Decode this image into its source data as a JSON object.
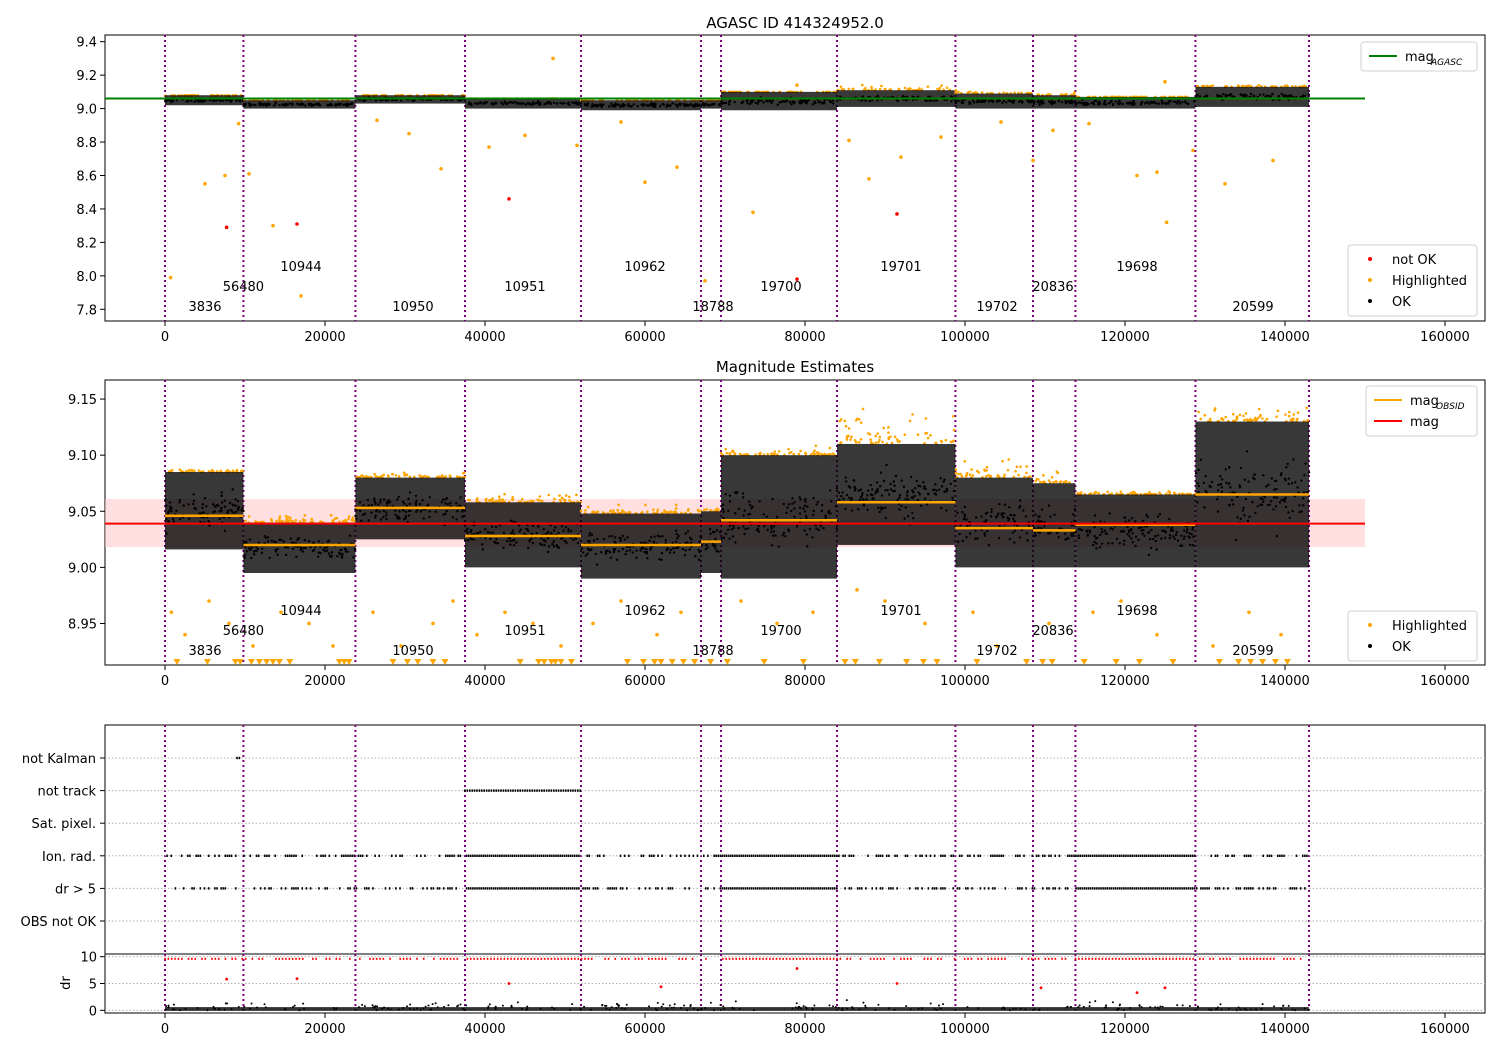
{
  "figure": {
    "title": "AGASC ID 414324952.0"
  },
  "chart_data": [
    {
      "type": "scatter",
      "title": "",
      "xlim": [
        -7500,
        165000
      ],
      "ylim": [
        7.73,
        9.44
      ],
      "xticks": [
        0,
        20000,
        40000,
        60000,
        80000,
        100000,
        120000,
        140000,
        160000
      ],
      "yticks": [
        7.8,
        8.0,
        8.2,
        8.4,
        8.6,
        8.8,
        9.0,
        9.2,
        9.4
      ],
      "ytick_labels": [
        "7.8",
        "8.0",
        "8.2",
        "8.4",
        "8.6",
        "8.8",
        "9.0",
        "9.2",
        "9.4"
      ],
      "mag_agasc": 9.06,
      "legend_top": {
        "position": "top-right",
        "entries": [
          {
            "label": "mag",
            "sub": "AGASC",
            "color": "#008000"
          }
        ]
      },
      "legend_bottom": {
        "position": "bottom-right",
        "entries": [
          {
            "label": "not OK",
            "color": "#ff0000"
          },
          {
            "label": "Highlighted",
            "color": "#ffa500"
          },
          {
            "label": "OK",
            "color": "#000000"
          }
        ]
      },
      "series": [
        {
          "label": "not OK",
          "x": [
            7700,
            16500,
            43000,
            91500,
            79000
          ],
          "y": [
            8.29,
            8.31,
            8.46,
            8.37,
            7.98
          ]
        },
        {
          "label": "Highlighted",
          "x": [
            700,
            5000,
            7500,
            9200,
            10500,
            13500,
            17000,
            26500,
            30500,
            34500,
            40500,
            45000,
            48500,
            51500,
            57000,
            60000,
            64000,
            67500,
            73500,
            79000,
            85500,
            88000,
            92000,
            97000,
            104500,
            108500,
            111000,
            115500,
            121500,
            124000,
            125000,
            125200,
            128500,
            132500,
            138500
          ],
          "y": [
            7.99,
            8.55,
            8.6,
            8.91,
            8.61,
            8.3,
            7.88,
            8.93,
            8.85,
            8.64,
            8.77,
            8.84,
            9.3,
            8.78,
            8.92,
            8.56,
            8.65,
            7.97,
            8.38,
            9.14,
            8.81,
            8.58,
            8.71,
            8.83,
            8.92,
            8.69,
            8.87,
            8.91,
            8.6,
            8.62,
            9.16,
            8.32,
            8.75,
            8.55,
            8.69
          ]
        }
      ],
      "bands": [
        {
          "x": [
            0,
            9800
          ],
          "low": 9.02,
          "high": 9.08,
          "hl": 9.07
        },
        {
          "x": [
            9800,
            23800
          ],
          "low": 9.0,
          "high": 9.05,
          "hl": 9.05
        },
        {
          "x": [
            23800,
            37500
          ],
          "low": 9.03,
          "high": 9.08,
          "hl": 9.07
        },
        {
          "x": [
            37500,
            52000
          ],
          "low": 9.0,
          "high": 9.06,
          "hl": 9.06
        },
        {
          "x": [
            52000,
            67000
          ],
          "low": 8.99,
          "high": 9.05,
          "hl": 9.05
        },
        {
          "x": [
            67000,
            69500
          ],
          "low": 9.0,
          "high": 9.05,
          "hl": 9.05
        },
        {
          "x": [
            69500,
            84000
          ],
          "low": 8.99,
          "high": 9.1,
          "hl": 9.1
        },
        {
          "x": [
            84000,
            98800
          ],
          "low": 9.01,
          "high": 9.11,
          "hl": 9.16
        },
        {
          "x": [
            98800,
            108500
          ],
          "low": 9.0,
          "high": 9.09,
          "hl": 9.12
        },
        {
          "x": [
            108500,
            113800
          ],
          "low": 9.0,
          "high": 9.08,
          "hl": 9.1
        },
        {
          "x": [
            113800,
            128800
          ],
          "low": 9.0,
          "high": 9.07,
          "hl": 9.07
        },
        {
          "x": [
            128800,
            143000
          ],
          "low": 9.01,
          "high": 9.13,
          "hl": 9.15
        }
      ]
    },
    {
      "type": "scatter",
      "title": "Magnitude Estimates",
      "xlim": [
        -7500,
        165000
      ],
      "ylim": [
        8.913,
        9.167
      ],
      "xticks": [
        0,
        20000,
        40000,
        60000,
        80000,
        100000,
        120000,
        140000,
        160000
      ],
      "yticks": [
        8.95,
        9.0,
        9.05,
        9.1,
        9.15
      ],
      "ytick_labels": [
        "8.95",
        "9.00",
        "9.05",
        "9.10",
        "9.15"
      ],
      "mag": 9.039,
      "mag_band": [
        9.018,
        9.061
      ],
      "legend_top": {
        "position": "top-right",
        "entries": [
          {
            "label": "mag",
            "sub": "OBSID",
            "color": "#ffa500"
          },
          {
            "label": "mag",
            "sub": "",
            "color": "#ff0000"
          }
        ]
      },
      "legend_bottom": {
        "position": "bottom-right",
        "entries": [
          {
            "label": "Highlighted",
            "color": "#ffa500"
          },
          {
            "label": "OK",
            "color": "#000000"
          }
        ]
      },
      "obsid_mean": [
        {
          "x": [
            0,
            9800
          ],
          "y": 9.046
        },
        {
          "x": [
            9800,
            23800
          ],
          "y": 9.02
        },
        {
          "x": [
            23800,
            37500
          ],
          "y": 9.053
        },
        {
          "x": [
            37500,
            52000
          ],
          "y": 9.028
        },
        {
          "x": [
            52000,
            67000
          ],
          "y": 9.02
        },
        {
          "x": [
            67000,
            69500
          ],
          "y": 9.023
        },
        {
          "x": [
            69500,
            84000
          ],
          "y": 9.042
        },
        {
          "x": [
            84000,
            98800
          ],
          "y": 9.058
        },
        {
          "x": [
            98800,
            108500
          ],
          "y": 9.035
        },
        {
          "x": [
            108500,
            113800
          ],
          "y": 9.033
        },
        {
          "x": [
            113800,
            128800
          ],
          "y": 9.038
        },
        {
          "x": [
            128800,
            143000
          ],
          "y": 9.065
        }
      ],
      "bands": [
        {
          "x": [
            0,
            9800
          ],
          "low": 9.016,
          "high": 9.085,
          "hl": 9.09
        },
        {
          "x": [
            9800,
            23800
          ],
          "low": 8.995,
          "high": 9.04,
          "hl": 9.05
        },
        {
          "x": [
            23800,
            37500
          ],
          "low": 9.025,
          "high": 9.08,
          "hl": 9.088
        },
        {
          "x": [
            37500,
            52000
          ],
          "low": 9.0,
          "high": 9.058,
          "hl": 9.07
        },
        {
          "x": [
            52000,
            67000
          ],
          "low": 8.99,
          "high": 9.048,
          "hl": 9.06
        },
        {
          "x": [
            67000,
            69500
          ],
          "low": 8.995,
          "high": 9.05,
          "hl": 9.06
        },
        {
          "x": [
            69500,
            84000
          ],
          "low": 8.99,
          "high": 9.1,
          "hl": 9.11
        },
        {
          "x": [
            84000,
            98800
          ],
          "low": 9.02,
          "high": 9.11,
          "hl": 9.16
        },
        {
          "x": [
            98800,
            108500
          ],
          "low": 9.0,
          "high": 9.08,
          "hl": 9.11
        },
        {
          "x": [
            108500,
            113800
          ],
          "low": 9.0,
          "high": 9.075,
          "hl": 9.1
        },
        {
          "x": [
            113800,
            128800
          ],
          "low": 9.0,
          "high": 9.065,
          "hl": 9.07
        },
        {
          "x": [
            128800,
            143000
          ],
          "low": 9.0,
          "high": 9.13,
          "hl": 9.155
        }
      ],
      "highlighted": {
        "x": [
          800,
          2500,
          5500,
          8000,
          11000,
          14500,
          18000,
          21000,
          26000,
          29500,
          33500,
          36000,
          39000,
          42500,
          46000,
          49500,
          53500,
          57000,
          61500,
          64500,
          72000,
          76500,
          81000,
          86500,
          90000,
          95000,
          101000,
          104000,
          110500,
          116000,
          119500,
          124000,
          131000,
          135500,
          139500
        ],
        "y": [
          8.96,
          8.94,
          8.97,
          8.95,
          8.93,
          8.96,
          8.95,
          8.93,
          8.96,
          8.93,
          8.95,
          8.97,
          8.94,
          8.96,
          8.95,
          8.93,
          8.95,
          8.97,
          8.94,
          8.96,
          8.97,
          8.95,
          8.96,
          8.98,
          8.97,
          8.95,
          8.96,
          8.93,
          8.95,
          8.96,
          8.97,
          8.94,
          8.93,
          8.96,
          8.94
        ]
      },
      "clipped_markers_x": [
        1500,
        5300,
        8800,
        9400,
        10800,
        11800,
        12700,
        13500,
        14300,
        15600,
        21800,
        22400,
        23000,
        28500,
        30300,
        31600,
        33500,
        35000,
        44400,
        46700,
        47400,
        48300,
        48800,
        49500,
        50800,
        57800,
        59800,
        61200,
        62000,
        63400,
        64800,
        66200,
        68200,
        70300,
        74900,
        79800,
        85000,
        86300,
        89300,
        92700,
        94800,
        96500,
        101500,
        107700,
        109700,
        110900,
        114900,
        118900,
        121800,
        126000,
        131800,
        134200,
        135700,
        137200,
        138800,
        140300
      ]
    },
    {
      "type": "scatter",
      "title": "",
      "xlim": [
        -7500,
        165000
      ],
      "xticks": [
        0,
        20000,
        40000,
        60000,
        80000,
        100000,
        120000,
        140000,
        160000
      ],
      "flag_labels": [
        "not Kalman",
        "not track",
        "Sat. pixel.",
        "Ion. rad.",
        "dr > 5",
        "OBS not OK"
      ],
      "flag_spans": {
        "not Kalman": [
          [
            9000,
            9400
          ]
        ],
        "not track": [
          [
            37500,
            52000
          ]
        ],
        "Sat. pixel.": [],
        "Ion. rad.": [
          [
            0,
            143000
          ]
        ],
        "dr > 5": [
          [
            0,
            143000
          ]
        ],
        "OBS not OK": []
      },
      "dr_ylabel": "dr",
      "dr_ylim": [
        -0.5,
        10.5
      ],
      "dr_yticks": [
        0,
        5,
        10
      ],
      "dr_red_spikes": {
        "x": [
          7700,
          16500,
          43000,
          62000,
          79000,
          91500,
          109500,
          121500,
          125000
        ],
        "y": [
          5.8,
          5.9,
          5.0,
          4.4,
          7.8,
          5.0,
          4.2,
          3.3,
          4.2
        ]
      }
    }
  ],
  "obsids": [
    {
      "label": "3836",
      "start": 0,
      "row": 3
    },
    {
      "label": "56480",
      "start": 9800,
      "row": 2
    },
    {
      "label": "10944",
      "start": 9800,
      "row": 1
    },
    {
      "label": "10950",
      "start": 23800,
      "row": 3
    },
    {
      "label": "10951",
      "start": 37500,
      "row": 2
    },
    {
      "label": "10962",
      "start": 52000,
      "row": 1
    },
    {
      "label": "18788",
      "start": 67000,
      "row": 3
    },
    {
      "label": "19700",
      "start": 69500,
      "row": 2
    },
    {
      "label": "19701",
      "start": 84000,
      "row": 1
    },
    {
      "label": "19702",
      "start": 98800,
      "row": 3
    },
    {
      "label": "20836",
      "start": 108500,
      "row": 2
    },
    {
      "label": "19698",
      "start": 113800,
      "row": 1
    },
    {
      "label": "20599",
      "start": 128800,
      "row": 3
    }
  ],
  "obsid_label_x": [
    5000,
    9800,
    17000,
    31000,
    45000,
    60000,
    68500,
    77000,
    92000,
    104000,
    111000,
    121500,
    136000
  ],
  "obs_boundaries": [
    0,
    9800,
    23800,
    37500,
    52000,
    67000,
    69500,
    84000,
    98800,
    108500,
    113800,
    128800,
    143000
  ],
  "colors": {
    "ok": "#000000",
    "highlighted": "#ffa500",
    "not_ok": "#ff0000",
    "agasc_line": "#008000",
    "mag_line": "#ff0000",
    "obsid_line": "#ffa500",
    "boundary": "#800080",
    "mag_band": "#ffc0c0"
  }
}
